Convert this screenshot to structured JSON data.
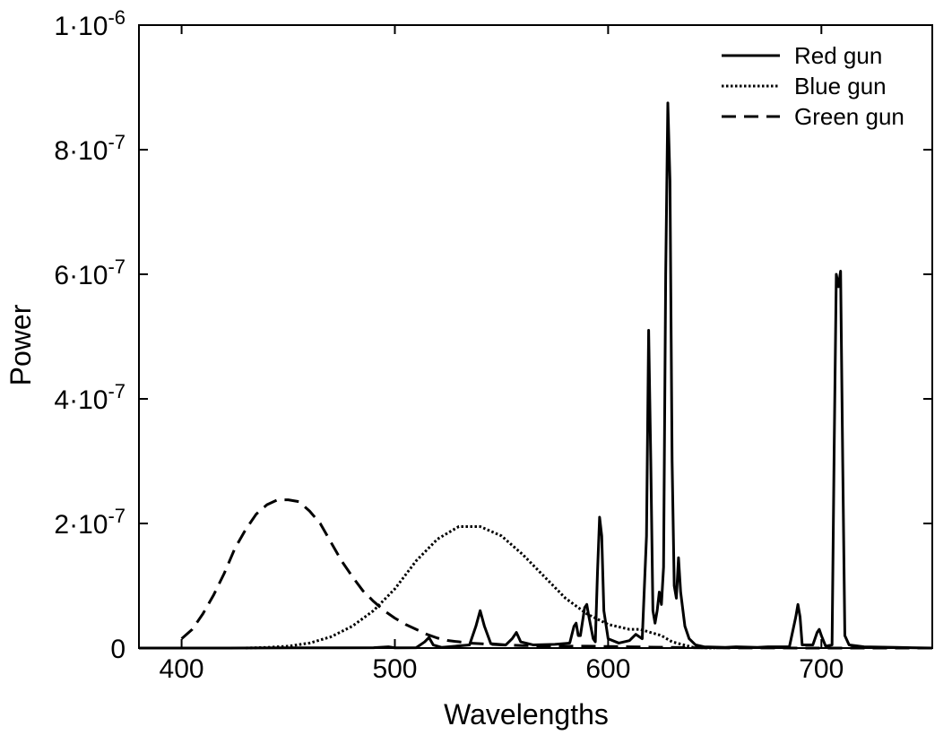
{
  "chart_data": {
    "type": "line",
    "title": "",
    "xlabel": "Wavelengths",
    "ylabel": "Power",
    "xlim": [
      380,
      752
    ],
    "ylim": [
      0,
      1e-06
    ],
    "x_ticks": [
      400,
      500,
      600,
      700
    ],
    "x_tick_labels": [
      "400",
      "500",
      "600",
      "700"
    ],
    "y_ticks": [
      0,
      2e-07,
      4e-07,
      6e-07,
      8e-07,
      1e-06
    ],
    "y_tick_labels": [
      {
        "base": "0",
        "exp": ""
      },
      {
        "base": "2·10",
        "exp": "-7"
      },
      {
        "base": "4·10",
        "exp": "-7"
      },
      {
        "base": "6·10",
        "exp": "-7"
      },
      {
        "base": "8·10",
        "exp": "-7"
      },
      {
        "base": "1·10",
        "exp": "-6"
      }
    ],
    "grid": false,
    "legend_position": "top-right",
    "series": [
      {
        "name": "Red gun",
        "style": "solid",
        "color": "#000000",
        "points": [
          [
            380,
            0
          ],
          [
            420,
            0
          ],
          [
            450,
            3e-10
          ],
          [
            490,
            5e-10
          ],
          [
            497,
            2e-09
          ],
          [
            500,
            4e-10
          ],
          [
            510,
            5e-10
          ],
          [
            514,
            1e-08
          ],
          [
            516,
            1.7e-08
          ],
          [
            518,
            5e-09
          ],
          [
            522,
            1e-09
          ],
          [
            535,
            5e-09
          ],
          [
            538,
            3.5e-08
          ],
          [
            540,
            6e-08
          ],
          [
            542,
            3.5e-08
          ],
          [
            545,
            7e-09
          ],
          [
            552,
            5e-09
          ],
          [
            555,
            1.5e-08
          ],
          [
            557,
            2.5e-08
          ],
          [
            559,
            1e-08
          ],
          [
            565,
            5e-09
          ],
          [
            575,
            6e-09
          ],
          [
            582,
            8e-09
          ],
          [
            584,
            3.5e-08
          ],
          [
            585,
            4e-08
          ],
          [
            586,
            2e-08
          ],
          [
            587,
            2e-08
          ],
          [
            589,
            6.5e-08
          ],
          [
            590,
            7e-08
          ],
          [
            591,
            5e-08
          ],
          [
            593,
            1.5e-08
          ],
          [
            594,
            1e-08
          ],
          [
            595,
            1.2e-07
          ],
          [
            596,
            2.1e-07
          ],
          [
            597,
            1.8e-07
          ],
          [
            598,
            6e-08
          ],
          [
            600,
            1.5e-08
          ],
          [
            605,
            8e-09
          ],
          [
            610,
            1.2e-08
          ],
          [
            613,
            2.2e-08
          ],
          [
            616,
            1.5e-08
          ],
          [
            618,
            1.8e-07
          ],
          [
            619,
            5.1e-07
          ],
          [
            620,
            3e-07
          ],
          [
            621,
            6e-08
          ],
          [
            622,
            4e-08
          ],
          [
            623,
            6e-08
          ],
          [
            624,
            9e-08
          ],
          [
            625,
            7e-08
          ],
          [
            626,
            1.3e-07
          ],
          [
            627,
            6e-07
          ],
          [
            628,
            8.75e-07
          ],
          [
            629,
            7.5e-07
          ],
          [
            630,
            3e-07
          ],
          [
            631,
            1e-07
          ],
          [
            632,
            8e-08
          ],
          [
            633,
            1.45e-07
          ],
          [
            634,
            9e-08
          ],
          [
            636,
            3.5e-08
          ],
          [
            638,
            1.5e-08
          ],
          [
            641,
            5e-09
          ],
          [
            645,
            2e-09
          ],
          [
            655,
            1e-09
          ],
          [
            660,
            2e-09
          ],
          [
            670,
            1e-09
          ],
          [
            675,
            2e-09
          ],
          [
            685,
            2e-09
          ],
          [
            688,
            5e-08
          ],
          [
            689,
            7e-08
          ],
          [
            690,
            5e-08
          ],
          [
            691,
            5e-09
          ],
          [
            696,
            5e-09
          ],
          [
            698,
            2.5e-08
          ],
          [
            699,
            3e-08
          ],
          [
            700,
            2e-08
          ],
          [
            702,
            3e-09
          ],
          [
            705,
            5e-09
          ],
          [
            706,
            3.2e-07
          ],
          [
            707,
            6e-07
          ],
          [
            708,
            5.8e-07
          ],
          [
            709,
            6.05e-07
          ],
          [
            710,
            3e-07
          ],
          [
            711,
            2e-08
          ],
          [
            713,
            5e-09
          ],
          [
            720,
            2e-09
          ],
          [
            735,
            1e-09
          ],
          [
            752,
            0
          ]
        ]
      },
      {
        "name": "Blue gun",
        "style": "dotted",
        "color": "#000000",
        "points": [
          [
            430,
            0
          ],
          [
            440,
            1e-09
          ],
          [
            450,
            3e-09
          ],
          [
            460,
            8e-09
          ],
          [
            470,
            1.8e-08
          ],
          [
            480,
            3.5e-08
          ],
          [
            490,
            6e-08
          ],
          [
            500,
            9.5e-08
          ],
          [
            510,
            1.4e-07
          ],
          [
            520,
            1.75e-07
          ],
          [
            530,
            1.95e-07
          ],
          [
            540,
            1.95e-07
          ],
          [
            550,
            1.8e-07
          ],
          [
            560,
            1.5e-07
          ],
          [
            570,
            1.15e-07
          ],
          [
            580,
            8e-08
          ],
          [
            590,
            5.5e-08
          ],
          [
            600,
            3.8e-08
          ],
          [
            610,
            3e-08
          ],
          [
            615,
            3e-08
          ],
          [
            620,
            2.5e-08
          ],
          [
            625,
            2e-08
          ],
          [
            630,
            1e-08
          ],
          [
            640,
            1e-09
          ],
          [
            650,
            0
          ]
        ]
      },
      {
        "name": "Green gun",
        "style": "dashed",
        "color": "#000000",
        "points": [
          [
            400,
            1.5e-08
          ],
          [
            405,
            3e-08
          ],
          [
            410,
            5.5e-08
          ],
          [
            415,
            8.5e-08
          ],
          [
            420,
            1.2e-07
          ],
          [
            425,
            1.6e-07
          ],
          [
            430,
            1.9e-07
          ],
          [
            435,
            2.15e-07
          ],
          [
            440,
            2.3e-07
          ],
          [
            445,
            2.38e-07
          ],
          [
            450,
            2.38e-07
          ],
          [
            455,
            2.35e-07
          ],
          [
            460,
            2.2e-07
          ],
          [
            465,
            2e-07
          ],
          [
            470,
            1.7e-07
          ],
          [
            475,
            1.4e-07
          ],
          [
            480,
            1.15e-07
          ],
          [
            485,
            9.2e-08
          ],
          [
            490,
            7.5e-08
          ],
          [
            495,
            6e-08
          ],
          [
            500,
            4.8e-08
          ],
          [
            505,
            3.8e-08
          ],
          [
            510,
            3e-08
          ],
          [
            515,
            2.2e-08
          ],
          [
            520,
            1.6e-08
          ],
          [
            525,
            1.2e-08
          ],
          [
            530,
            1e-08
          ],
          [
            535,
            8e-09
          ],
          [
            540,
            7e-09
          ],
          [
            550,
            5e-09
          ],
          [
            560,
            4e-09
          ],
          [
            570,
            3.5e-09
          ],
          [
            580,
            3e-09
          ],
          [
            590,
            3e-09
          ],
          [
            600,
            2.5e-09
          ],
          [
            610,
            2e-09
          ],
          [
            620,
            1.5e-09
          ],
          [
            630,
            1e-09
          ],
          [
            640,
            5e-10
          ],
          [
            660,
            2e-10
          ],
          [
            680,
            1e-10
          ],
          [
            700,
            0
          ],
          [
            752,
            0
          ]
        ]
      }
    ]
  }
}
